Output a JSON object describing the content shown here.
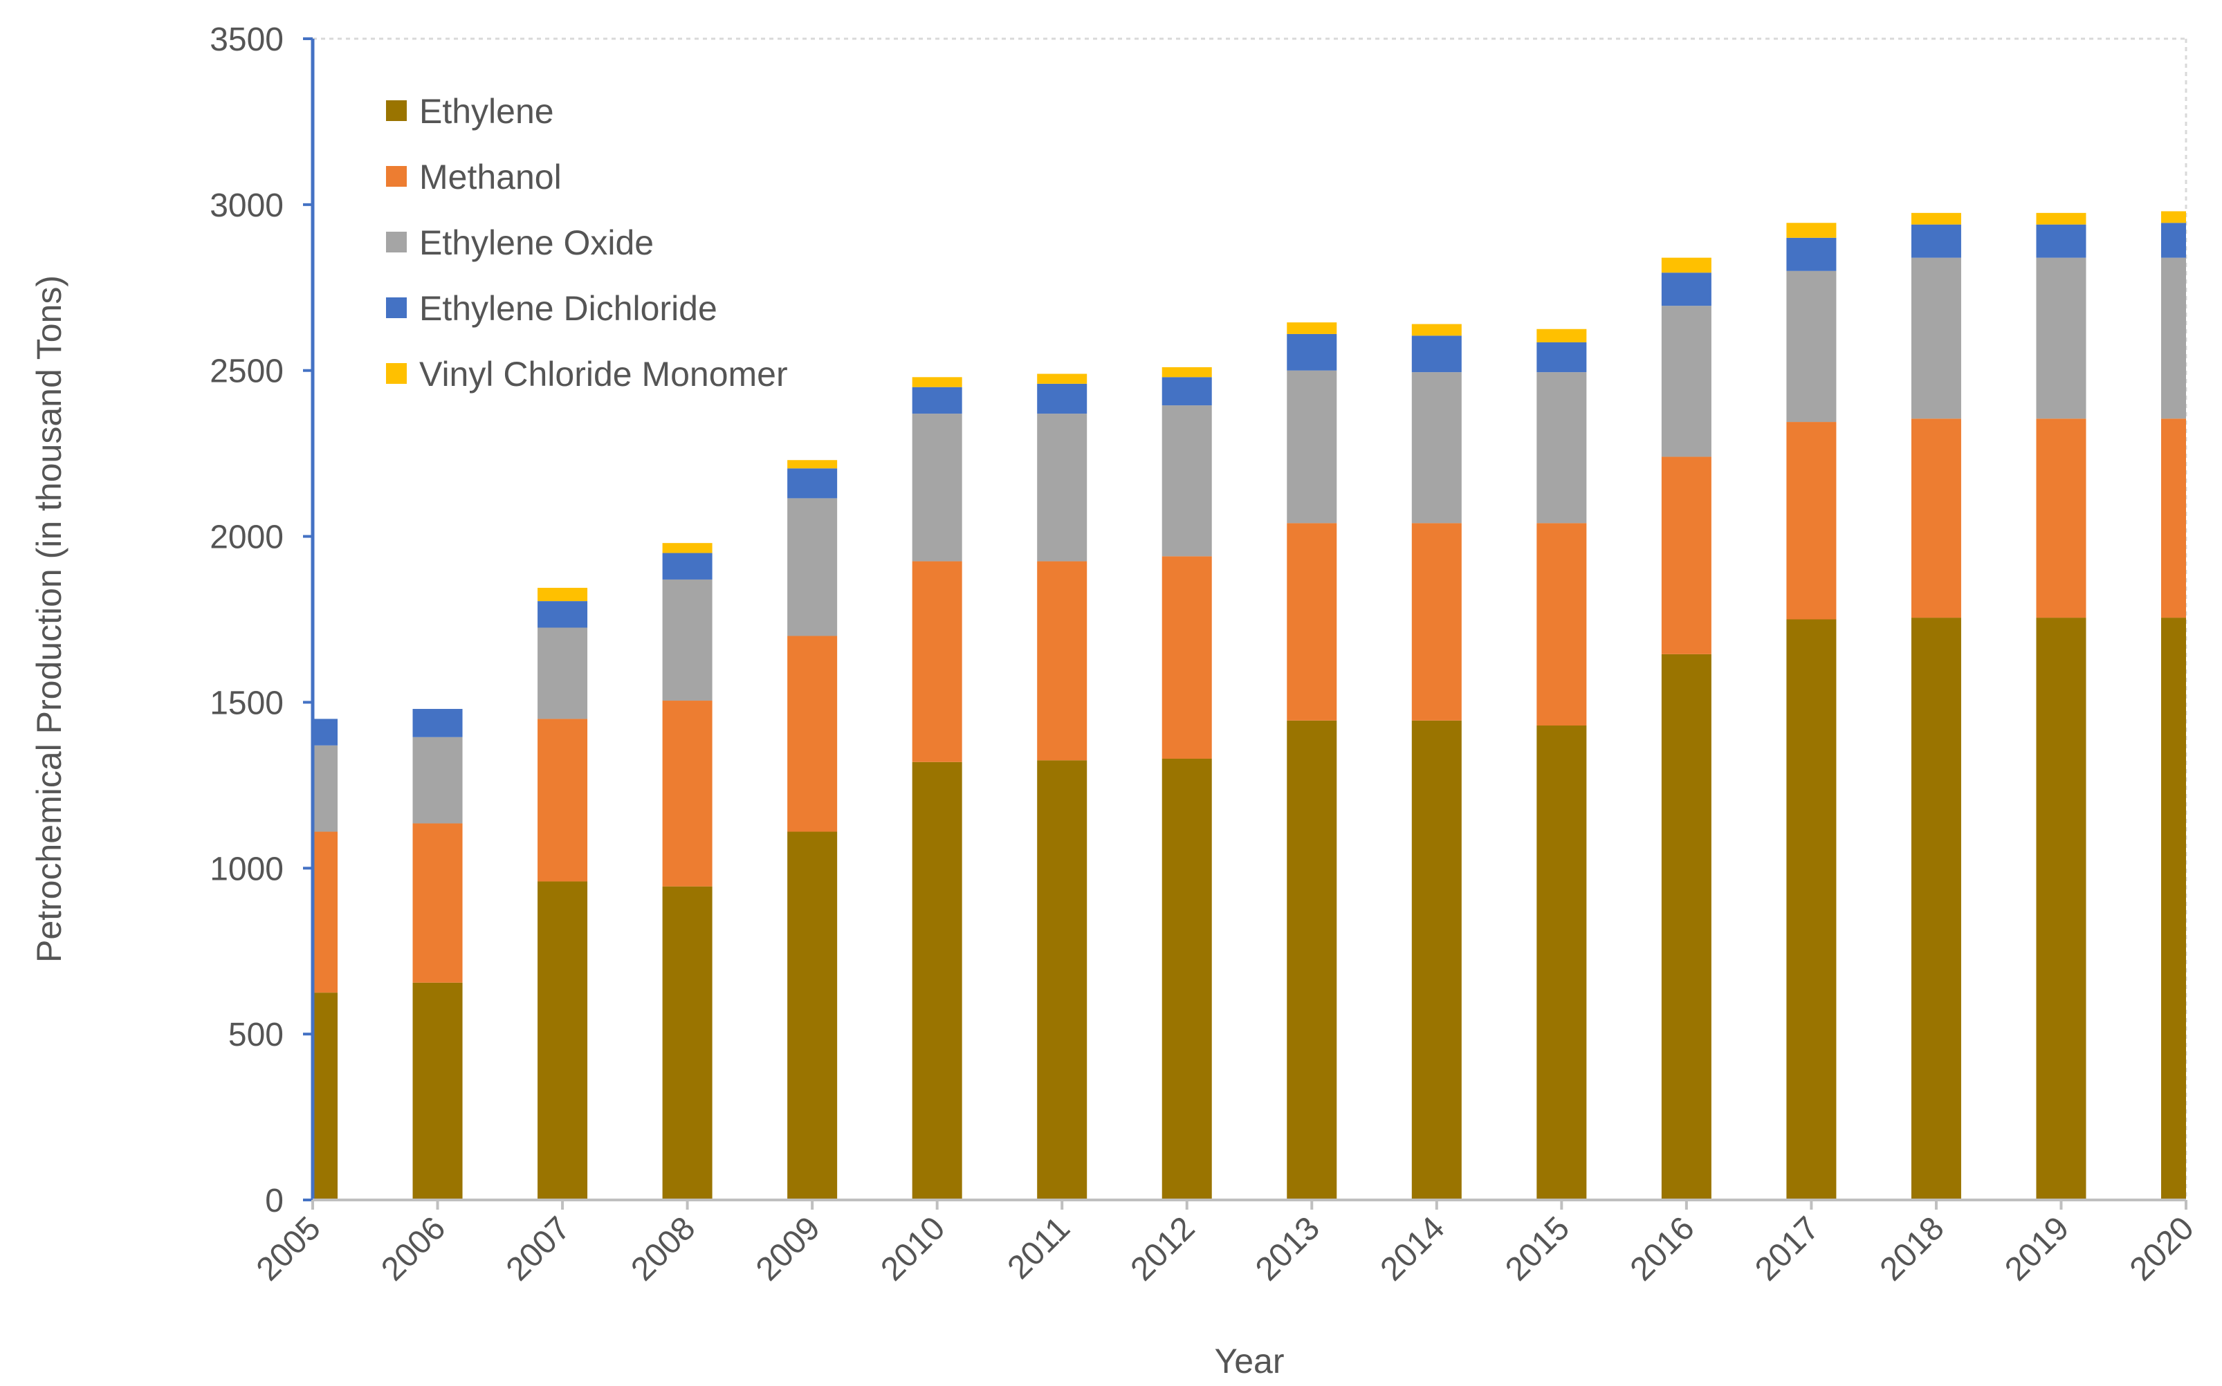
{
  "chart_data": {
    "type": "bar",
    "stacked": true,
    "title": "",
    "xlabel": "Year",
    "ylabel": "Petrochemical Production (in thousand Tons)",
    "ylim": [
      0,
      3500
    ],
    "yticks": [
      0,
      500,
      1000,
      1500,
      2000,
      2500,
      3000,
      3500
    ],
    "grid": false,
    "legend_position": "top-left",
    "categories": [
      "2005",
      "2006",
      "2007",
      "2008",
      "2009",
      "2010",
      "2011",
      "2012",
      "2013",
      "2014",
      "2015",
      "2016",
      "2017",
      "2018",
      "2019",
      "2020"
    ],
    "series": [
      {
        "name": "Ethylene",
        "color": "#9A7400",
        "values": [
          625,
          655,
          960,
          945,
          1110,
          1320,
          1325,
          1330,
          1445,
          1445,
          1430,
          1645,
          1750,
          1755,
          1755,
          1755
        ]
      },
      {
        "name": "Methanol",
        "color": "#ED7D31",
        "values": [
          485,
          480,
          490,
          560,
          590,
          605,
          600,
          610,
          595,
          595,
          610,
          595,
          595,
          600,
          600,
          600
        ]
      },
      {
        "name": "Ethylene Oxide",
        "color": "#A5A5A5",
        "values": [
          260,
          260,
          275,
          365,
          415,
          445,
          445,
          455,
          460,
          455,
          455,
          455,
          455,
          485,
          485,
          485
        ]
      },
      {
        "name": "Ethylene Dichloride",
        "color": "#4472C4",
        "values": [
          80,
          85,
          80,
          80,
          90,
          80,
          90,
          85,
          110,
          110,
          90,
          100,
          100,
          100,
          100,
          105
        ]
      },
      {
        "name": "Vinyl Chloride Monomer",
        "color": "#FFC000",
        "values": [
          0,
          0,
          40,
          30,
          25,
          30,
          30,
          30,
          35,
          35,
          40,
          45,
          45,
          35,
          35,
          35
        ]
      }
    ]
  },
  "colors": {
    "axis": "#4472C4",
    "text": "#555555",
    "frame": "#D9D9D9"
  }
}
